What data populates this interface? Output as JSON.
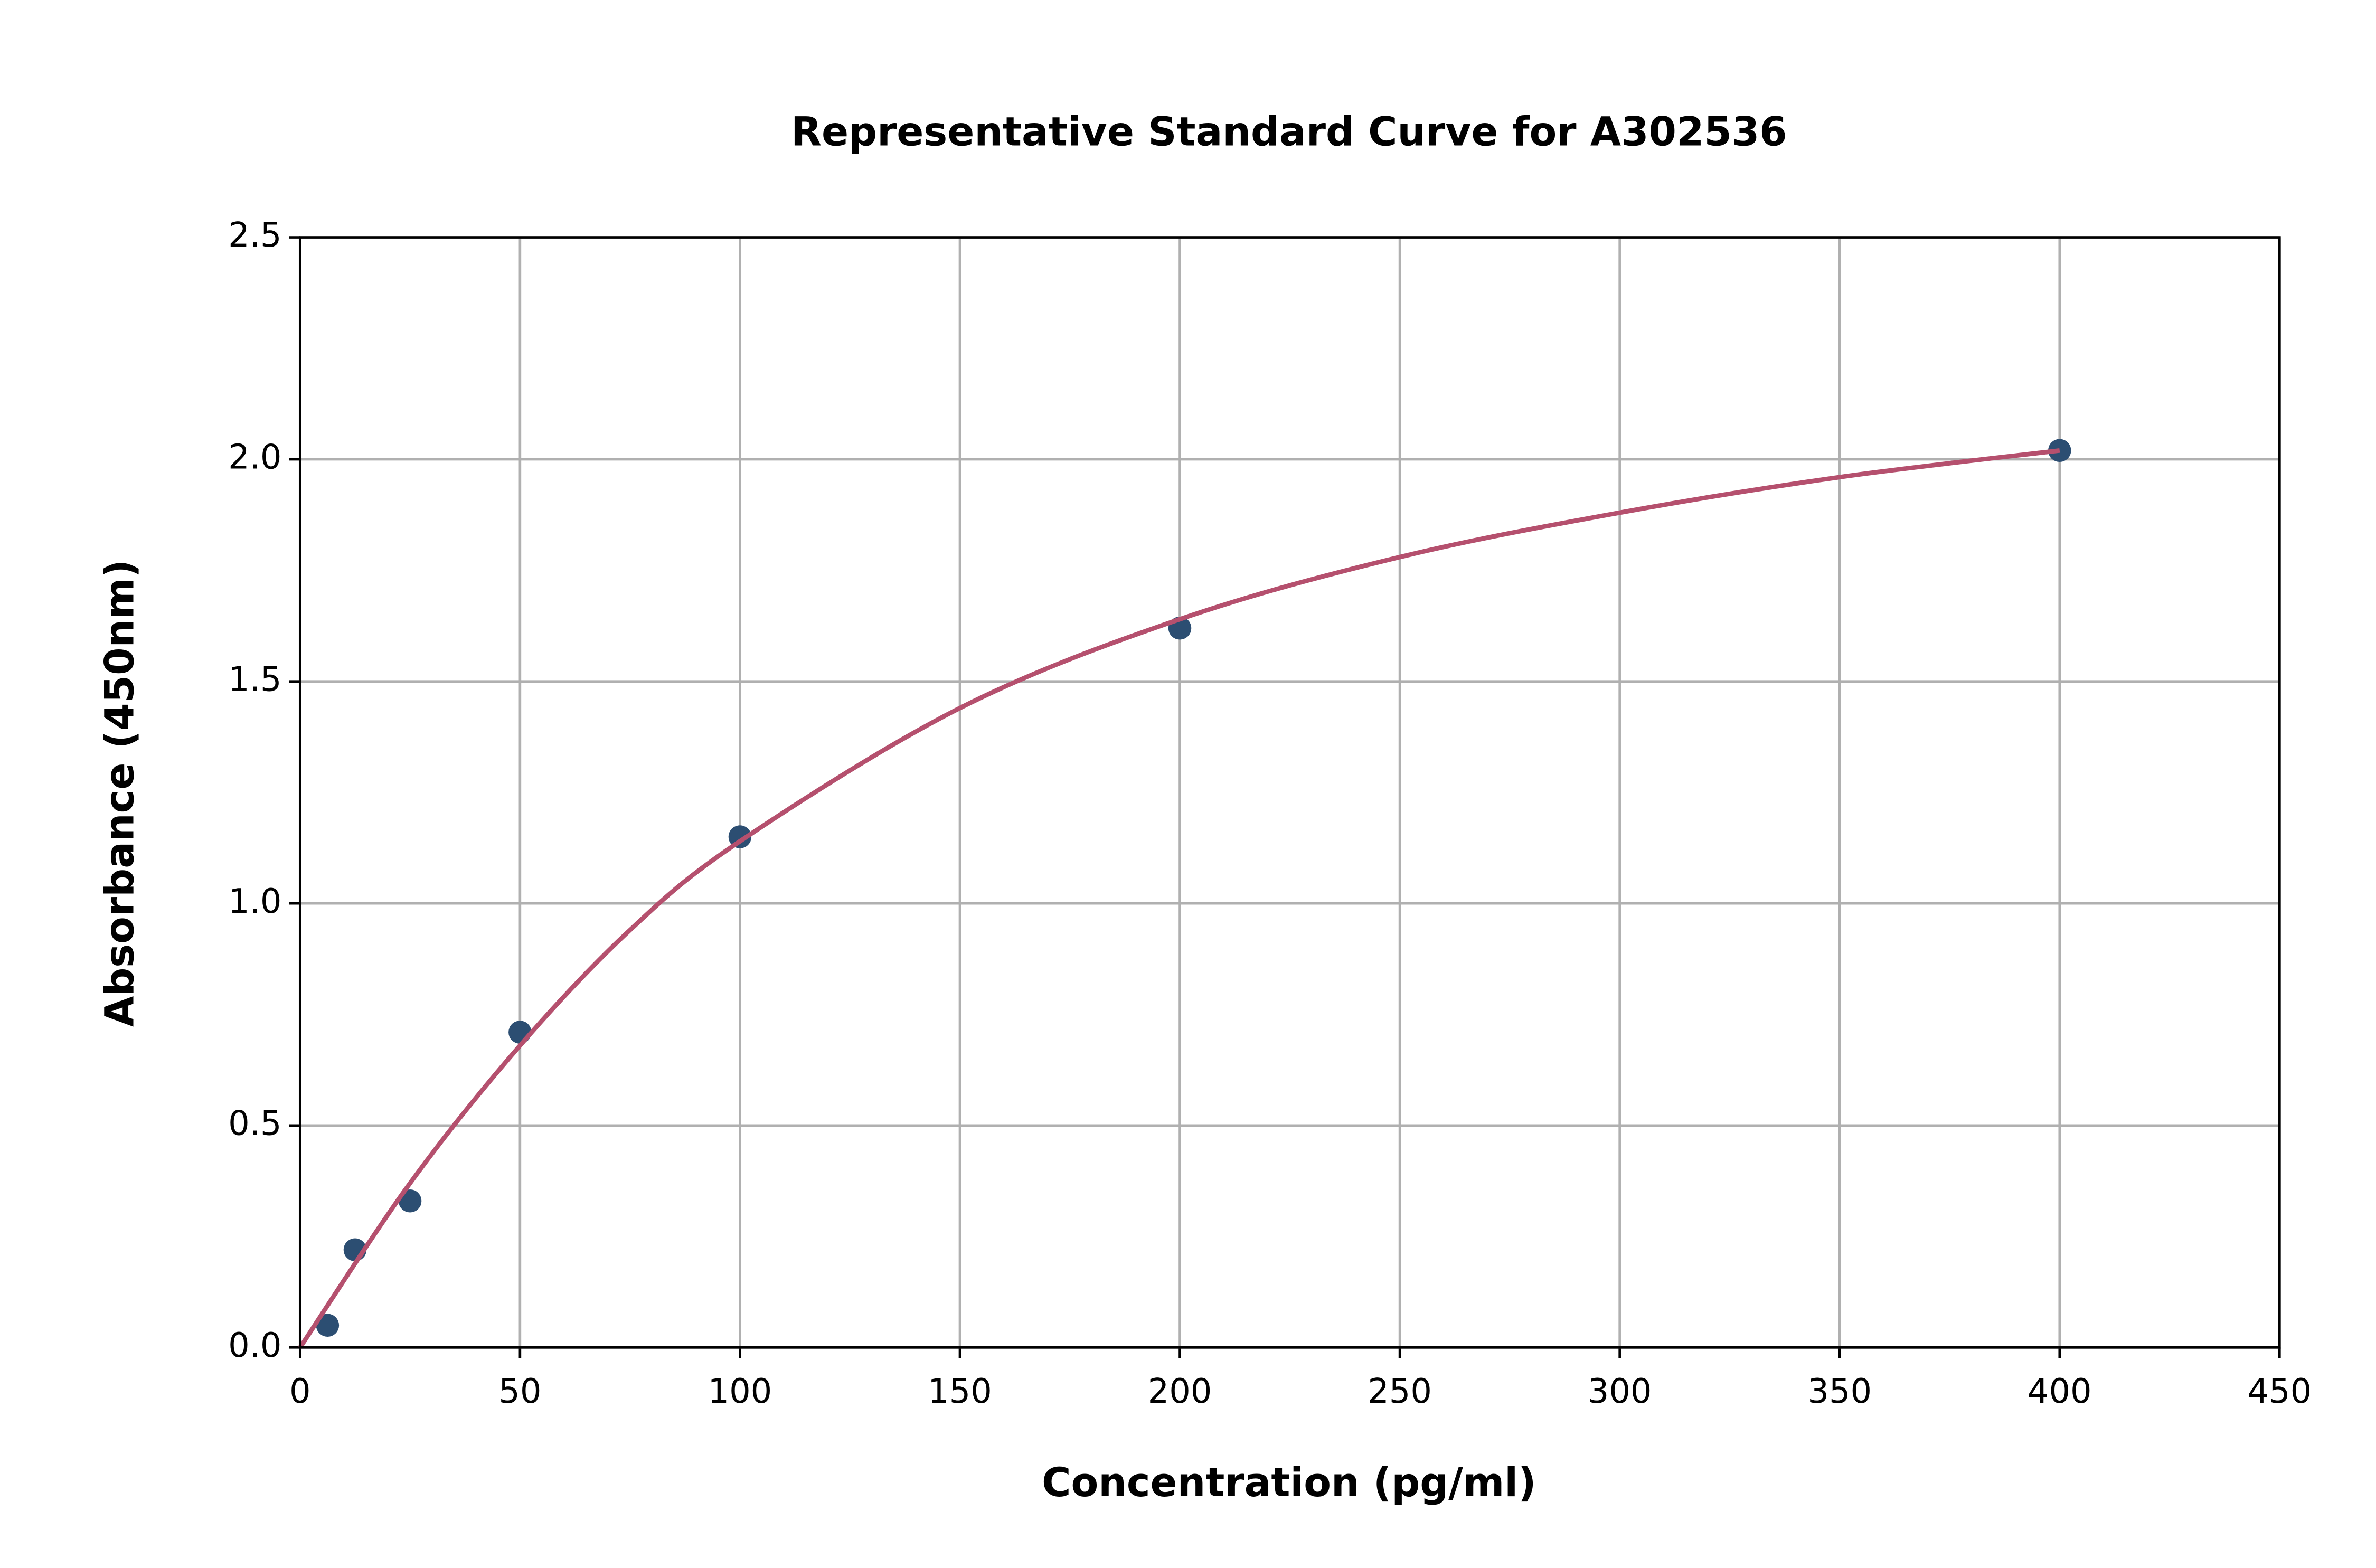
{
  "chart_data": {
    "type": "scatter",
    "title": "Representative Standard Curve for A302536",
    "x_label": "Concentration (pg/ml)",
    "y_label": "Absorbance (450nm)",
    "xlim": [
      0,
      450
    ],
    "ylim": [
      0,
      2.5
    ],
    "xticks": [
      0,
      50,
      100,
      150,
      200,
      250,
      300,
      350,
      400,
      450
    ],
    "yticks": [
      {
        "value": 0,
        "label": "0.0"
      },
      0.5,
      {
        "value": 1,
        "label": "1.0"
      },
      1.5,
      {
        "value": 2,
        "label": "2.0"
      },
      2.5
    ],
    "grid": true,
    "series": [
      {
        "type": "scatter",
        "color": "#2c4e72",
        "x": [
          6.25,
          12.5,
          25,
          50,
          100,
          200,
          400
        ],
        "values": [
          0.05,
          0.22,
          0.33,
          0.71,
          1.15,
          1.62,
          2.02
        ]
      },
      {
        "type": "line",
        "color": "#b5506e",
        "x": [
          0,
          25,
          50,
          75,
          100,
          150,
          200,
          250,
          300,
          350,
          400
        ],
        "values": [
          0,
          0.37,
          0.68,
          0.94,
          1.14,
          1.44,
          1.64,
          1.78,
          1.88,
          1.96,
          2.02
        ]
      }
    ]
  }
}
